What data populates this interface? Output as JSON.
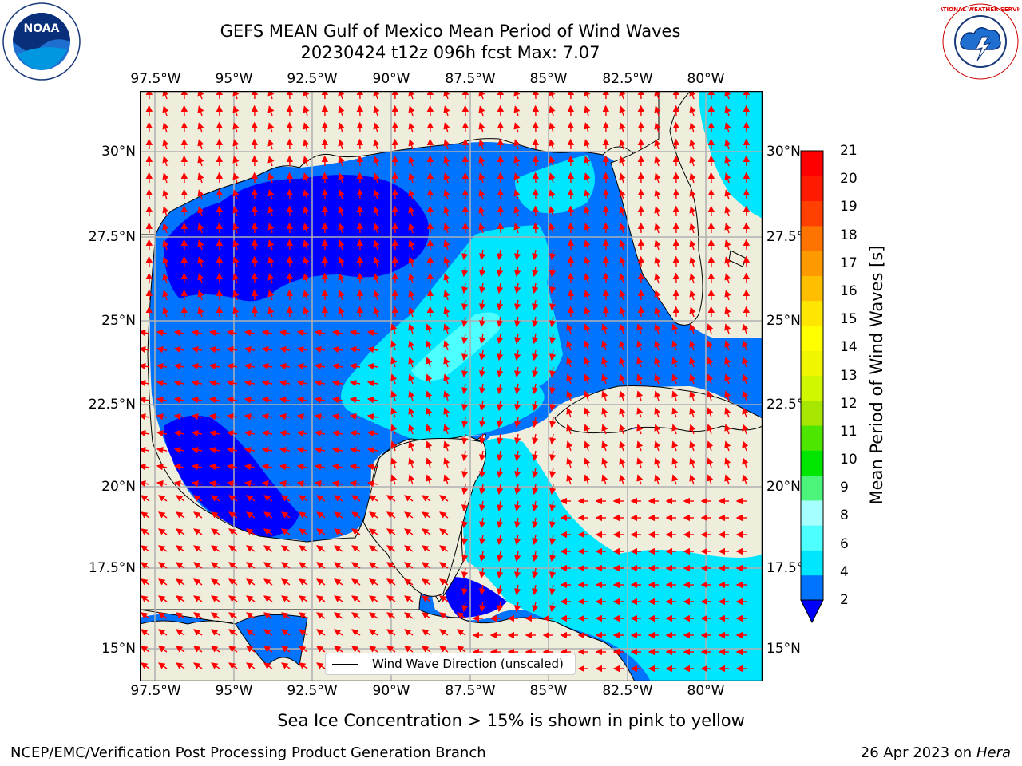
{
  "title": {
    "line1": "GEFS MEAN Gulf of Mexico Mean Period of Wind Waves",
    "line2": "20230424 t12z 096h fcst   Max: 7.07"
  },
  "lon_ticks": [
    "97.5°W",
    "95°W",
    "92.5°W",
    "90°W",
    "87.5°W",
    "85°W",
    "82.5°W",
    "80°W"
  ],
  "lat_ticks_left": [
    "30°N",
    "27.5°N",
    "25°N",
    "22.5°N",
    "20°N",
    "17.5°N",
    "15°N"
  ],
  "lat_ticks_right": [
    "30°N",
    "27.5°",
    "25°N",
    "22.5°",
    "20°N",
    "17.5°",
    "15°N"
  ],
  "colorbar": {
    "label": "Mean Period of Wind Waves [s]",
    "ticks": [
      "21",
      "20",
      "19",
      "18",
      "17",
      "16",
      "15",
      "14",
      "13",
      "12",
      "11",
      "10",
      "9",
      "8",
      "6",
      "4",
      "2"
    ],
    "colors_bottom_to_top": [
      "#0073ff",
      "#00e6ff",
      "#4dffff",
      "#a6ffff",
      "#4df47a",
      "#00e600",
      "#4de600",
      "#a6e600",
      "#d2f500",
      "#f0f500",
      "#ffff00",
      "#ffe600",
      "#ffbf00",
      "#ff9900",
      "#ff7300",
      "#ff4000",
      "#ff1a00",
      "#ff0000"
    ],
    "under_color": "#0000ff"
  },
  "map_colors": {
    "land": "#efeddc",
    "deep_blue": "#0000ff",
    "blue": "#0073ff",
    "cyan": "#00e6ff",
    "light_cyan": "#4dffff",
    "arrow": "#ff0000"
  },
  "legend": {
    "label": "Wind Wave Direction (unscaled)"
  },
  "footer": {
    "ice_note": "Sea Ice Concentration > 15% is shown in pink to yellow",
    "credit": "NCEP/EMC/Verification Post Processing Product Generation Branch",
    "date_prefix": "26 Apr 2023 on ",
    "machine": "Hera"
  },
  "logos": {
    "left": "NOAA",
    "right": "NATIONAL WEATHER SERVICE"
  }
}
